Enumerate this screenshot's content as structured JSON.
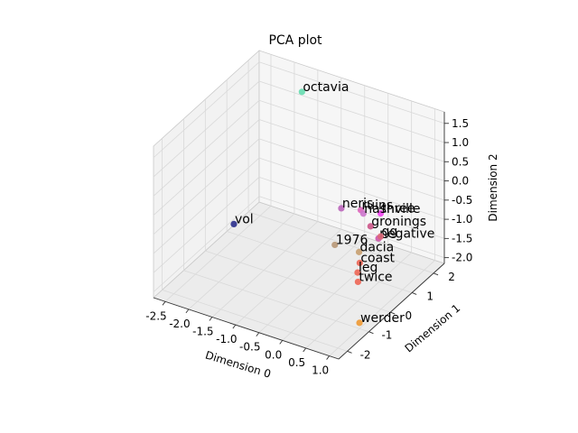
{
  "chart_data": {
    "type": "scatter",
    "projection": "3d",
    "title": "PCA plot",
    "xlabel": "Dimension 0",
    "ylabel": "Dimension 1",
    "zlabel": "Dimension 2",
    "xlim": [
      -2.75,
      1.2
    ],
    "ylim": [
      -2.4,
      2.5
    ],
    "zlim": [
      -2.15,
      1.8
    ],
    "x_ticks": [
      "-2.5",
      "-2.0",
      "-1.5",
      "-1.0",
      "-0.5",
      "0.0",
      "0.5",
      "1.0"
    ],
    "x_tick_values": [
      -2.5,
      -2.0,
      -1.5,
      -1.0,
      -0.5,
      0.0,
      0.5,
      1.0
    ],
    "y_ticks": [
      "-2",
      "-1",
      "0",
      "1",
      "2"
    ],
    "y_tick_values": [
      -2,
      -1,
      0,
      1,
      2
    ],
    "z_ticks": [
      "-2.0",
      "-1.5",
      "-1.0",
      "-0.5",
      "0.0",
      "0.5",
      "1.0",
      "1.5"
    ],
    "z_tick_values": [
      -2.0,
      -1.5,
      -1.0,
      -0.5,
      0.0,
      0.5,
      1.0,
      1.5
    ],
    "grid": true,
    "points": [
      {
        "label": "octavia",
        "x": -1.7,
        "y": 2.2,
        "z": 1.3,
        "color": "#66ddb0"
      },
      {
        "label": "vol",
        "x": -2.6,
        "y": 1.0,
        "z": -1.9,
        "color": "#2b2f8c"
      },
      {
        "label": "three",
        "x": 0.9,
        "y": 0.2,
        "z": 0.2,
        "color": "#ee44ee"
      },
      {
        "label": "ruins",
        "x": 0.2,
        "y": 0.8,
        "z": -0.3,
        "color": "#dd66bb"
      },
      {
        "label": "nashville",
        "x": 0.3,
        "y": 0.7,
        "z": -0.3,
        "color": "#cc77cc"
      },
      {
        "label": "negative",
        "x": 0.9,
        "y": 0.1,
        "z": -0.4,
        "color": "#cc55aa"
      },
      {
        "label": "neris",
        "x": -0.4,
        "y": 1.2,
        "z": -0.7,
        "color": "#bb66bb"
      },
      {
        "label": "gronings",
        "x": 0.5,
        "y": 0.6,
        "z": -0.5,
        "color": "#cc5588"
      },
      {
        "label": "gg",
        "x": 0.9,
        "y": 0.2,
        "z": -0.4,
        "color": "#dd6677"
      },
      {
        "label": "dacia",
        "x": 0.3,
        "y": 0.5,
        "z": -1.2,
        "color": "#c8a070"
      },
      {
        "label": "coast",
        "x": 0.5,
        "y": 0.1,
        "z": -1.2,
        "color": "#ee6655"
      },
      {
        "label": "1976",
        "x": -0.4,
        "y": 0.9,
        "z": -1.5,
        "color": "#b89878"
      },
      {
        "label": "leg",
        "x": 0.5,
        "y": 0.0,
        "z": -1.4,
        "color": "#ee6655"
      },
      {
        "label": "twice",
        "x": 0.6,
        "y": -0.2,
        "z": -1.5,
        "color": "#ee6655"
      },
      {
        "label": "werder",
        "x": 1.0,
        "y": -1.0,
        "z": -2.0,
        "color": "#ee9933"
      }
    ],
    "pane_color": "#f2f2f2",
    "grid_color": "#d9d9d9"
  }
}
